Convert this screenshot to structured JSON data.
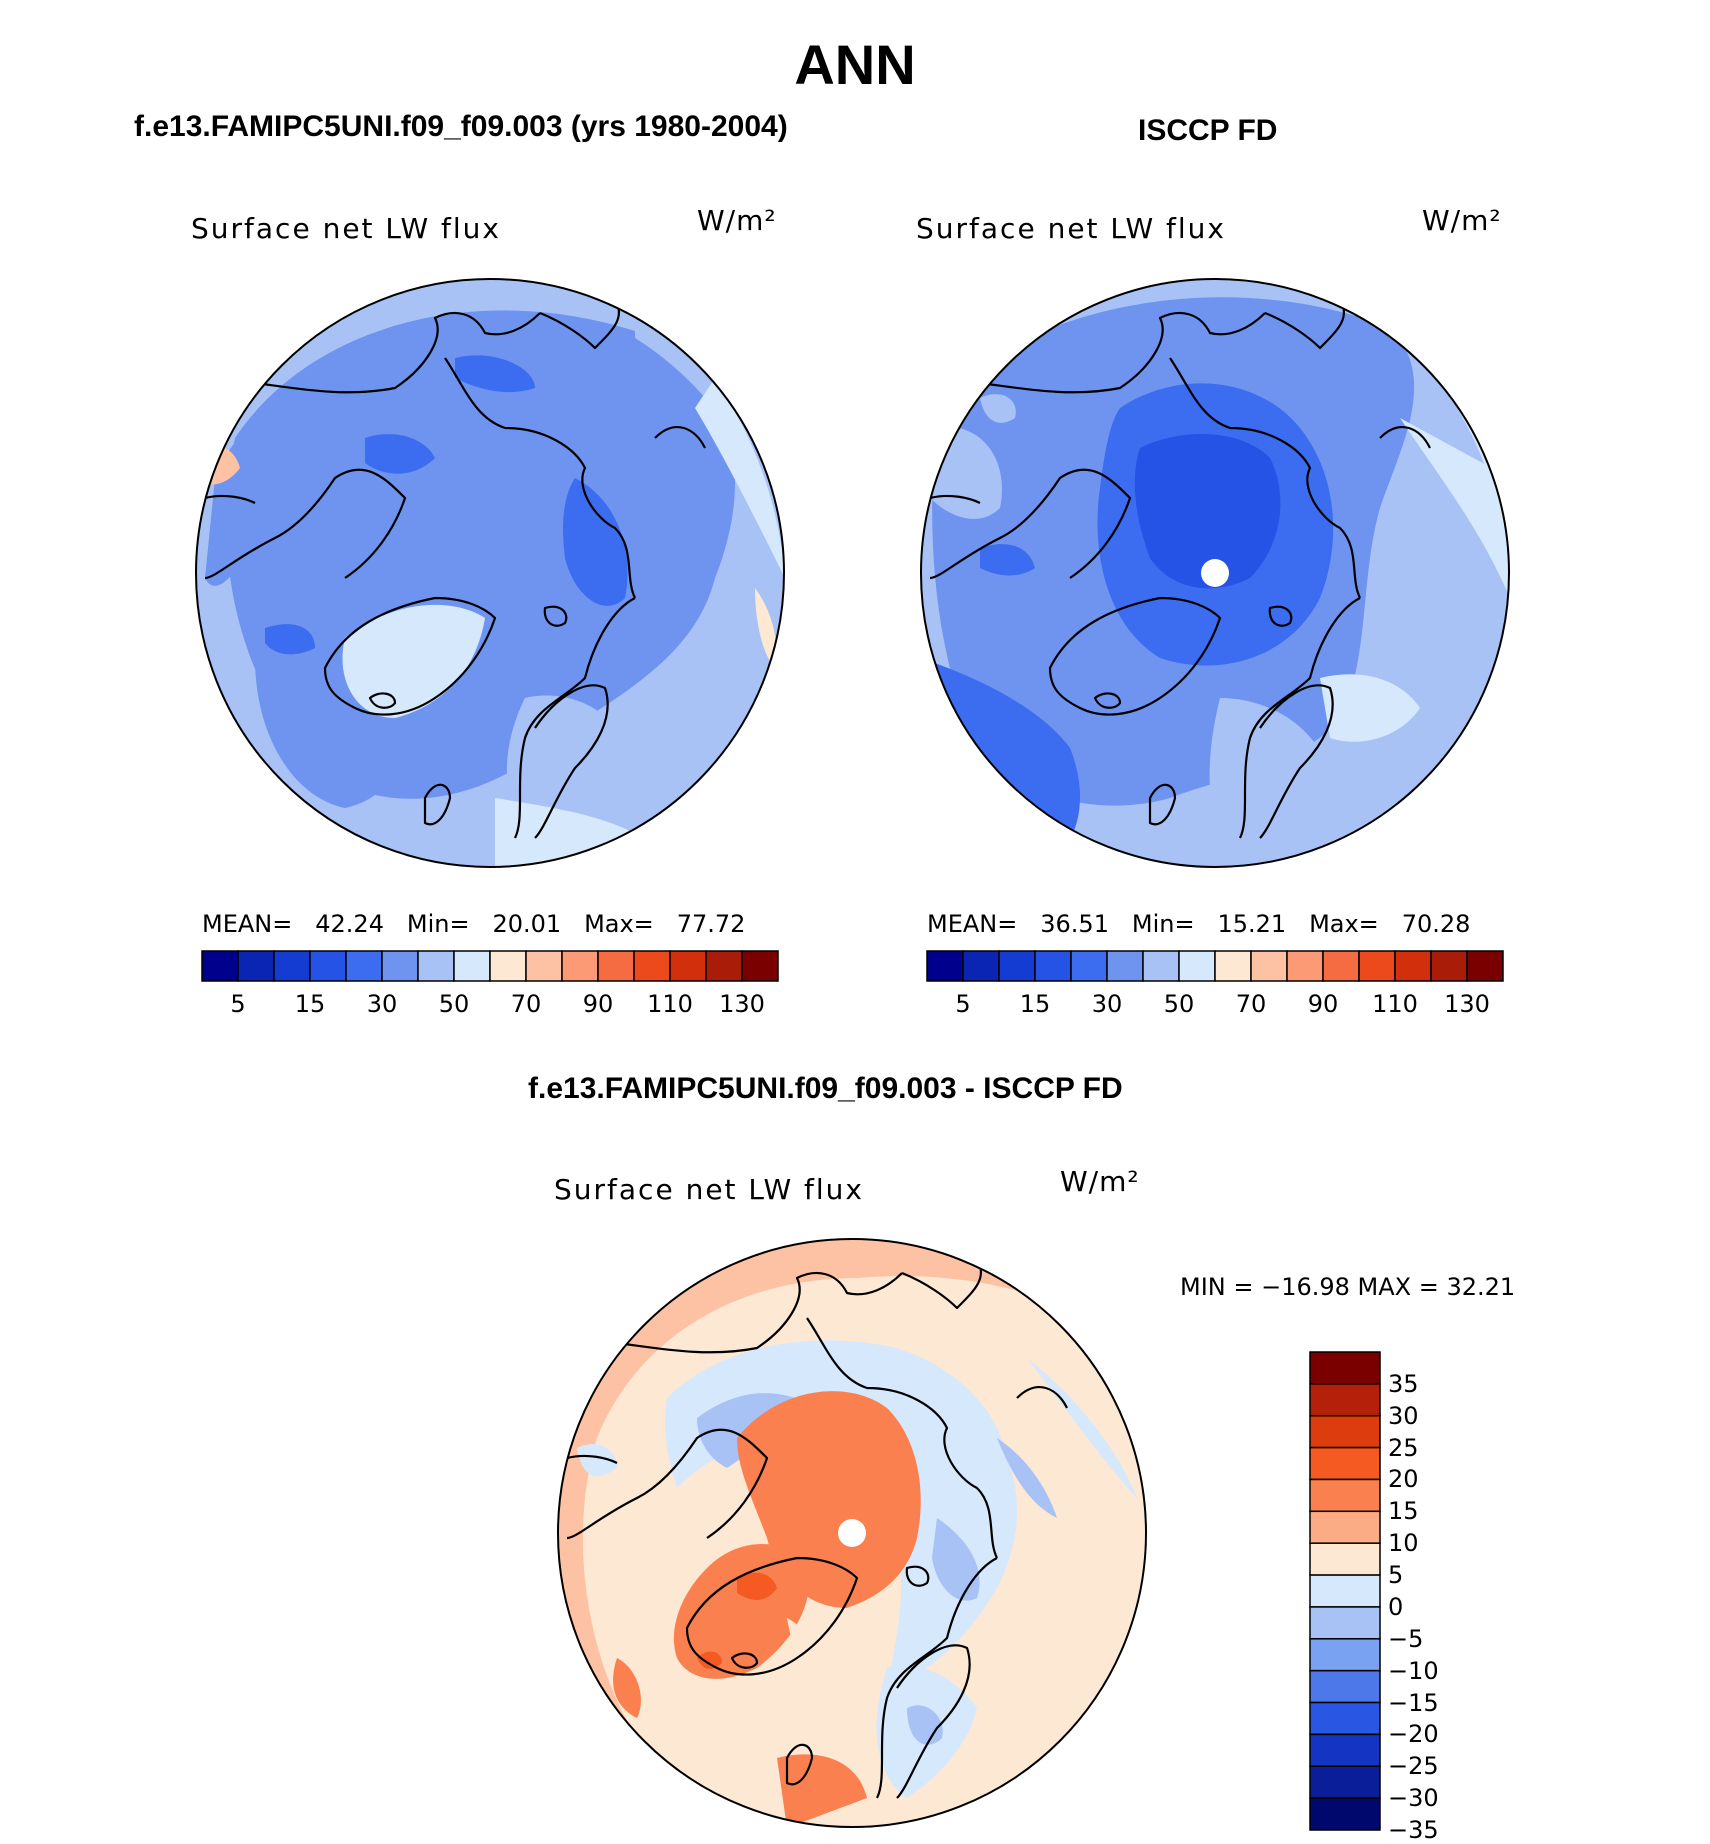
{
  "page_title": "ANN",
  "panels": [
    {
      "id": "model",
      "title": "f.e13.FAMIPC5UNI.f09_f09.003 (yrs 1980-2004)",
      "variable": "Surface net LW flux",
      "units": "W/m²",
      "stats": {
        "mean_label": "MEAN=",
        "mean": "42.24",
        "min_label": "Min=",
        "min": "20.01",
        "max_label": "Max=",
        "max": "77.72"
      }
    },
    {
      "id": "obs",
      "title": "ISCCP FD",
      "variable": "Surface net LW flux",
      "units": "W/m²",
      "stats": {
        "mean_label": "MEAN=",
        "mean": "36.51",
        "min_label": "Min=",
        "min": "15.21",
        "max_label": "Max=",
        "max": "70.28"
      }
    },
    {
      "id": "diff",
      "title": "f.e13.FAMIPC5UNI.f09_f09.003 - ISCCP FD",
      "variable": "Surface net LW flux",
      "units": "W/m²",
      "stats_text": "MIN = −16.98 MAX =   32.21"
    }
  ],
  "colorbar_abs": {
    "colors": [
      "#00008c",
      "#0a24b4",
      "#143cd2",
      "#2453e6",
      "#3c6cf0",
      "#6e94f0",
      "#a8c2f6",
      "#d6e8fb",
      "#fde8d4",
      "#fdc2a4",
      "#fb9a74",
      "#f56c42",
      "#ec4a1c",
      "#d2300c",
      "#a81c08",
      "#7a0000"
    ],
    "tick_labels": [
      "5",
      "15",
      "30",
      "50",
      "70",
      "90",
      "110",
      "130"
    ]
  },
  "colorbar_diff": {
    "colors": [
      "#7a0000",
      "#b4200a",
      "#dc3c0e",
      "#f45a22",
      "#fa8050",
      "#fcac84",
      "#fde8d4",
      "#d6e8fb",
      "#a8c2f6",
      "#7aa2f2",
      "#4c78ea",
      "#2a56e4",
      "#1434c4",
      "#0a1e9a",
      "#00086e"
    ],
    "tick_labels": [
      "35",
      "30",
      "25",
      "20",
      "15",
      "10",
      "5",
      "0",
      "−5",
      "−10",
      "−15",
      "−20",
      "−25",
      "−30",
      "−35"
    ]
  }
}
